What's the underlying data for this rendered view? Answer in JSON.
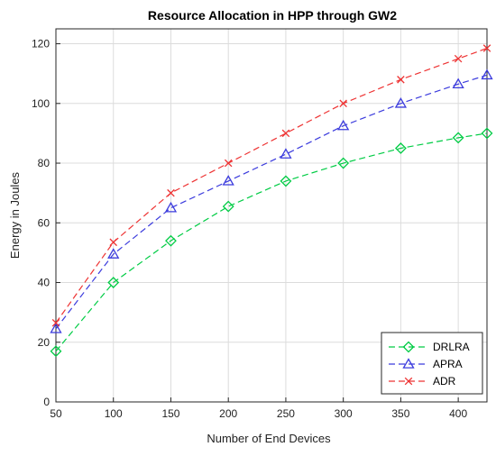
{
  "chart_data": {
    "type": "line",
    "title": "Resource Allocation in HPP through GW2",
    "xlabel": "Number of End Devices",
    "ylabel": "Energy in Joules",
    "xlim": [
      50,
      425
    ],
    "ylim": [
      0,
      125
    ],
    "xticks": [
      "50",
      "100",
      "150",
      "200",
      "250",
      "300",
      "350",
      "400"
    ],
    "xtick_values": [
      50,
      100,
      150,
      200,
      250,
      300,
      350,
      400
    ],
    "yticks": [
      "0",
      "20",
      "40",
      "60",
      "80",
      "100",
      "120"
    ],
    "ytick_values": [
      0,
      20,
      40,
      60,
      80,
      100,
      120
    ],
    "grid": true,
    "legend_position": "bottom-right",
    "x": [
      50,
      100,
      150,
      200,
      250,
      300,
      350,
      400,
      425
    ],
    "series": [
      {
        "name": "DRLRA",
        "color": "#00cc44",
        "marker": "diamond",
        "values": [
          17,
          40,
          54,
          65.5,
          74,
          80,
          85,
          88.5,
          90
        ]
      },
      {
        "name": "APRA",
        "color": "#3b3bdd",
        "marker": "triangle",
        "values": [
          24.5,
          49.5,
          65,
          74,
          83,
          92.5,
          100,
          106.5,
          109.5
        ]
      },
      {
        "name": "ADR",
        "color": "#ee3333",
        "marker": "x",
        "values": [
          26.5,
          53.5,
          70,
          80,
          90,
          100,
          108,
          115,
          118.5
        ]
      }
    ]
  }
}
